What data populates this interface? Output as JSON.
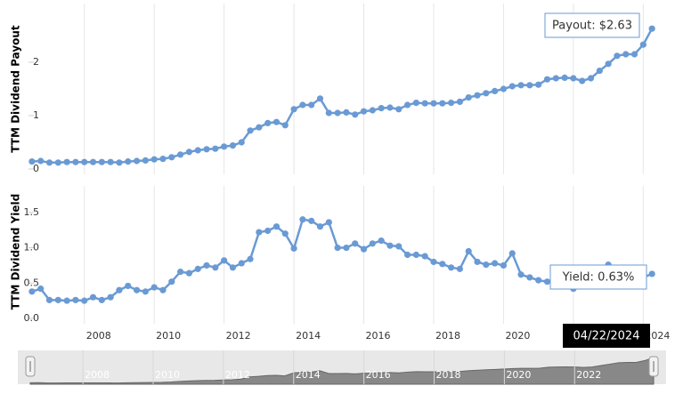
{
  "chart_data": [
    {
      "type": "line",
      "ylabel": "TTM Dividend Payout",
      "tooltip": "Payout: $2.63",
      "x": [
        2006.5,
        2006.75,
        2007,
        2007.25,
        2007.5,
        2007.75,
        2008,
        2008.25,
        2008.5,
        2008.75,
        2009,
        2009.25,
        2009.5,
        2009.75,
        2010,
        2010.25,
        2010.5,
        2010.75,
        2011,
        2011.25,
        2011.5,
        2011.75,
        2012,
        2012.25,
        2012.5,
        2012.75,
        2013,
        2013.25,
        2013.5,
        2013.75,
        2014,
        2014.25,
        2014.5,
        2014.75,
        2015,
        2015.25,
        2015.5,
        2015.75,
        2016,
        2016.25,
        2016.5,
        2016.75,
        2017,
        2017.25,
        2017.5,
        2017.75,
        2018,
        2018.25,
        2018.5,
        2018.75,
        2019,
        2019.25,
        2019.5,
        2019.75,
        2020,
        2020.25,
        2020.5,
        2020.75,
        2021,
        2021.25,
        2021.5,
        2021.75,
        2022,
        2022.25,
        2022.5,
        2022.75,
        2023,
        2023.25,
        2023.5,
        2023.75,
        2024,
        2024.25
      ],
      "series": [
        {
          "name": "Payout",
          "color": "#6a9ad4",
          "values": [
            0.14,
            0.15,
            0.12,
            0.12,
            0.13,
            0.13,
            0.13,
            0.13,
            0.13,
            0.13,
            0.12,
            0.14,
            0.15,
            0.16,
            0.18,
            0.19,
            0.22,
            0.27,
            0.32,
            0.35,
            0.37,
            0.38,
            0.42,
            0.44,
            0.5,
            0.72,
            0.78,
            0.86,
            0.88,
            0.82,
            1.12,
            1.2,
            1.2,
            1.32,
            1.05,
            1.05,
            1.06,
            1.02,
            1.08,
            1.1,
            1.14,
            1.15,
            1.12,
            1.2,
            1.24,
            1.23,
            1.23,
            1.23,
            1.24,
            1.26,
            1.34,
            1.38,
            1.42,
            1.46,
            1.5,
            1.55,
            1.57,
            1.57,
            1.58,
            1.68,
            1.7,
            1.71,
            1.7,
            1.65,
            1.7,
            1.84,
            1.97,
            2.12,
            2.15,
            2.15,
            2.33,
            2.63
          ]
        }
      ],
      "xlim": [
        2006.35,
        2024.45
      ],
      "xticks": [
        2008,
        2010,
        2012,
        2014,
        2016,
        2018,
        2020,
        2022,
        2024
      ],
      "ylim": [
        0,
        3
      ],
      "yticks": [
        0,
        1,
        2
      ]
    },
    {
      "type": "line",
      "ylabel": "TTM Dividend Yield",
      "tooltip": "Yield: 0.63%",
      "x": [
        2006.5,
        2006.75,
        2007,
        2007.25,
        2007.5,
        2007.75,
        2008,
        2008.25,
        2008.5,
        2008.75,
        2009,
        2009.25,
        2009.5,
        2009.75,
        2010,
        2010.25,
        2010.5,
        2010.75,
        2011,
        2011.25,
        2011.5,
        2011.75,
        2012,
        2012.25,
        2012.5,
        2012.75,
        2013,
        2013.25,
        2013.5,
        2013.75,
        2014,
        2014.25,
        2014.5,
        2014.75,
        2015,
        2015.25,
        2015.5,
        2015.75,
        2016,
        2016.25,
        2016.5,
        2016.75,
        2017,
        2017.25,
        2017.5,
        2017.75,
        2018,
        2018.25,
        2018.5,
        2018.75,
        2019,
        2019.25,
        2019.5,
        2019.75,
        2020,
        2020.25,
        2020.5,
        2020.75,
        2021,
        2021.25,
        2021.5,
        2021.75,
        2022,
        2022.25,
        2022.5,
        2022.75,
        2023,
        2023.25,
        2023.5,
        2023.75,
        2024,
        2024.25
      ],
      "series": [
        {
          "name": "Yield",
          "color": "#6a9ad4",
          "values": [
            0.38,
            0.42,
            0.26,
            0.26,
            0.25,
            0.26,
            0.25,
            0.3,
            0.26,
            0.3,
            0.4,
            0.46,
            0.4,
            0.38,
            0.44,
            0.4,
            0.52,
            0.66,
            0.64,
            0.7,
            0.75,
            0.72,
            0.82,
            0.72,
            0.78,
            0.84,
            1.22,
            1.24,
            1.3,
            1.2,
            0.99,
            1.4,
            1.38,
            1.3,
            1.36,
            1.0,
            1.0,
            1.06,
            0.98,
            1.06,
            1.1,
            1.03,
            1.02,
            0.9,
            0.9,
            0.88,
            0.8,
            0.77,
            0.72,
            0.7,
            0.95,
            0.8,
            0.76,
            0.78,
            0.75,
            0.92,
            0.62,
            0.58,
            0.54,
            0.52,
            0.55,
            0.5,
            0.42,
            0.5,
            0.55,
            0.55,
            0.76,
            0.6,
            0.58,
            0.58,
            0.58,
            0.63
          ]
        }
      ],
      "xlim": [
        2006.35,
        2024.45
      ],
      "xticks": [
        2008,
        2010,
        2012,
        2014,
        2016,
        2018,
        2020,
        2022,
        2024
      ],
      "ylim": [
        0,
        1.8
      ],
      "yticks": [
        {
          "value": 0,
          "label": "0.0"
        },
        {
          "value": 0.5,
          "label": "0.5"
        },
        {
          "value": 1,
          "label": "1.0"
        },
        {
          "value": 1.5,
          "label": "1.5"
        }
      ]
    }
  ],
  "crosshair_date": "04/22/2024",
  "navigator": {
    "xticks": [
      2008,
      2010,
      2012,
      2014,
      2016,
      2018,
      2020,
      2022
    ]
  }
}
